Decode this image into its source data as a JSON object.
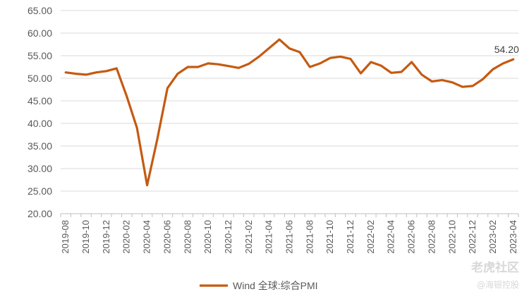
{
  "chart_data": {
    "type": "line",
    "title": "",
    "xlabel": "",
    "ylabel": "",
    "ylim": [
      20,
      65
    ],
    "y_ticks": [
      "20.00",
      "25.00",
      "30.00",
      "35.00",
      "40.00",
      "45.00",
      "50.00",
      "55.00",
      "60.00",
      "65.00"
    ],
    "x_tick_labels": [
      "2019-08",
      "2019-10",
      "2019-12",
      "2020-02",
      "2020-04",
      "2020-06",
      "2020-08",
      "2020-10",
      "2020-12",
      "2021-02",
      "2021-04",
      "2021-06",
      "2021-08",
      "2021-10",
      "2021-12",
      "2022-02",
      "2022-04",
      "2022-06",
      "2022-08",
      "2022-10",
      "2022-12",
      "2023-02",
      "2023-04"
    ],
    "grid": "horizontal",
    "legend_position": "bottom",
    "series": [
      {
        "name": "Wind 全球:综合PMI",
        "color": "#C55A11",
        "x": [
          "2019-08",
          "2019-09",
          "2019-10",
          "2019-11",
          "2019-12",
          "2020-01",
          "2020-02",
          "2020-03",
          "2020-04",
          "2020-05",
          "2020-06",
          "2020-07",
          "2020-08",
          "2020-09",
          "2020-10",
          "2020-11",
          "2020-12",
          "2021-01",
          "2021-02",
          "2021-03",
          "2021-04",
          "2021-05",
          "2021-06",
          "2021-07",
          "2021-08",
          "2021-09",
          "2021-10",
          "2021-11",
          "2021-12",
          "2022-01",
          "2022-02",
          "2022-03",
          "2022-04",
          "2022-05",
          "2022-06",
          "2022-07",
          "2022-08",
          "2022-09",
          "2022-10",
          "2022-11",
          "2022-12",
          "2023-01",
          "2023-02",
          "2023-03",
          "2023-04"
        ],
        "values": [
          51.3,
          51.0,
          50.8,
          51.3,
          51.6,
          52.2,
          46.0,
          39.0,
          26.3,
          36.5,
          47.8,
          51.0,
          52.5,
          52.5,
          53.3,
          53.1,
          52.7,
          52.3,
          53.2,
          54.8,
          56.7,
          58.6,
          56.6,
          55.8,
          52.5,
          53.3,
          54.5,
          54.8,
          54.3,
          51.1,
          53.6,
          52.8,
          51.2,
          51.4,
          53.6,
          50.8,
          49.3,
          49.6,
          49.1,
          48.1,
          48.3,
          49.8,
          52.0,
          53.3,
          54.2
        ]
      }
    ],
    "annotations": [
      {
        "x": "2023-04",
        "text": "54.20"
      }
    ]
  },
  "watermark": {
    "line1": "老虎社区",
    "line2": "@海银控股"
  }
}
